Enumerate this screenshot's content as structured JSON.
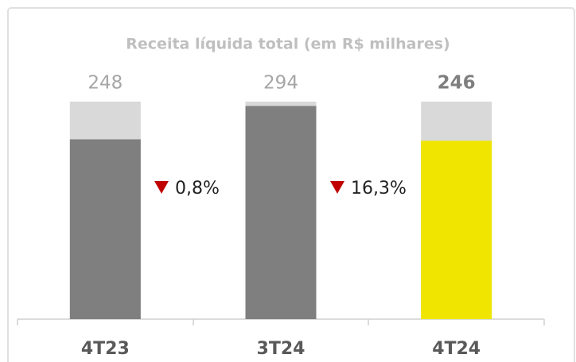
{
  "chart_data": {
    "type": "bar",
    "title": "Receita líquida total (em R$ milhares)",
    "categories": [
      "4T23",
      "3T24",
      "4T24"
    ],
    "values": [
      248,
      294,
      246
    ],
    "colors": [
      "#7f7f7f",
      "#7f7f7f",
      "#f0e500"
    ],
    "track_color": "#d9d9d9",
    "ylim": [
      0,
      300
    ],
    "annotations": [
      "0,8%",
      "16,3%"
    ]
  }
}
